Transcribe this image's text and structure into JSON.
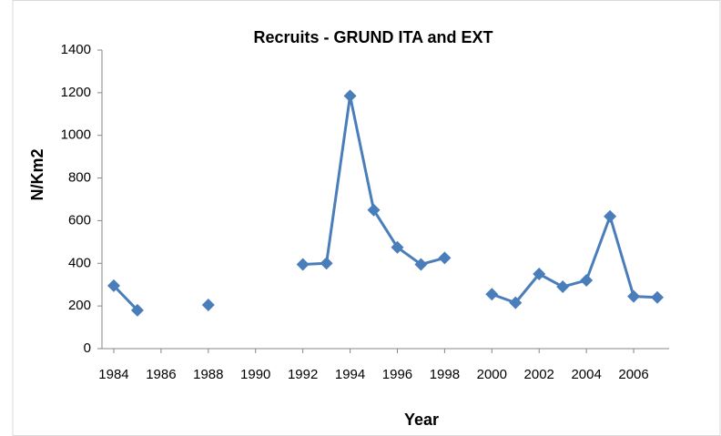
{
  "chart_data": {
    "type": "line",
    "title": "Recruits - GRUND ITA and EXT",
    "xlabel": "Year",
    "ylabel": "N/Km2",
    "x": [
      1984,
      1985,
      1986,
      1987,
      1988,
      1989,
      1990,
      1991,
      1992,
      1993,
      1994,
      1995,
      1996,
      1997,
      1998,
      1999,
      2000,
      2001,
      2002,
      2003,
      2004,
      2005,
      2006,
      2007
    ],
    "values": [
      295,
      180,
      null,
      null,
      205,
      null,
      null,
      null,
      395,
      400,
      1185,
      650,
      475,
      395,
      425,
      null,
      255,
      215,
      350,
      290,
      320,
      620,
      245,
      240
    ],
    "color": "#4a7ebb",
    "xlim": [
      1983.5,
      2007.5
    ],
    "xticks": [
      1984,
      1986,
      1988,
      1990,
      1992,
      1994,
      1996,
      1998,
      2000,
      2002,
      2004,
      2006
    ],
    "ylim": [
      0,
      1400
    ],
    "yticks": [
      0,
      200,
      400,
      600,
      800,
      1000,
      1200,
      1400
    ],
    "grid": false
  }
}
